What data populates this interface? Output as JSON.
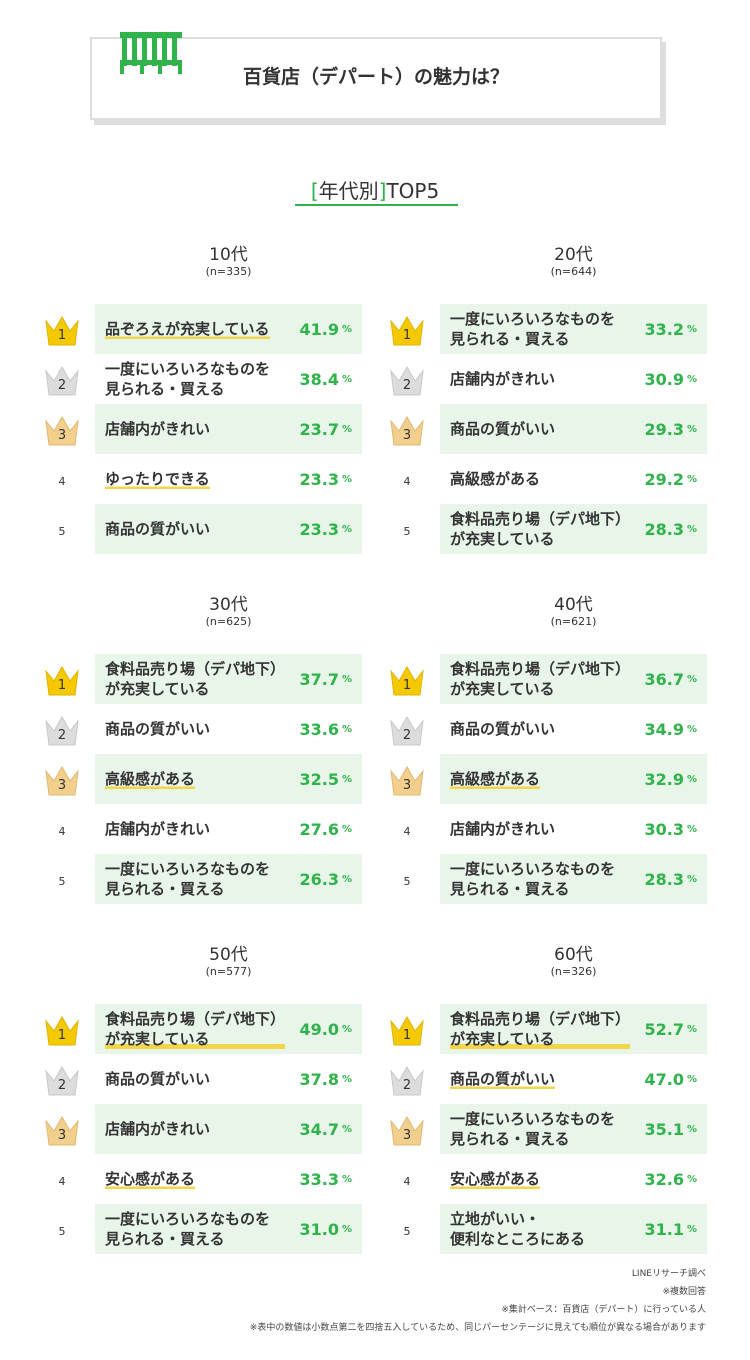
{
  "header": {
    "title": "百貨店（デパート）の魅力は？"
  },
  "section_title": {
    "open": "[",
    "text": "年代別",
    "close": "]",
    "rest": "TOP5"
  },
  "unit": "%",
  "groups": [
    {
      "title": "10代",
      "n": "(n=335)",
      "items": [
        {
          "rank": 1,
          "label": "品ぞろえが充実している",
          "value": "41.9",
          "highlight": true
        },
        {
          "rank": 2,
          "label": "一度にいろいろなものを\n見られる・買える",
          "value": "38.4",
          "highlight": false
        },
        {
          "rank": 3,
          "label": "店舗内がきれい",
          "value": "23.7",
          "highlight": false
        },
        {
          "rank": 4,
          "label": "ゆったりできる",
          "value": "23.3",
          "highlight": true
        },
        {
          "rank": 5,
          "label": "商品の質がいい",
          "value": "23.3",
          "highlight": false
        }
      ]
    },
    {
      "title": "20代",
      "n": "(n=644)",
      "items": [
        {
          "rank": 1,
          "label": "一度にいろいろなものを\n見られる・買える",
          "value": "33.2",
          "highlight": false
        },
        {
          "rank": 2,
          "label": "店舗内がきれい",
          "value": "30.9",
          "highlight": false
        },
        {
          "rank": 3,
          "label": "商品の質がいい",
          "value": "29.3",
          "highlight": false
        },
        {
          "rank": 4,
          "label": "高級感がある",
          "value": "29.2",
          "highlight": false
        },
        {
          "rank": 5,
          "label": "食料品売り場（デパ地下）\nが充実している",
          "value": "28.3",
          "highlight": false
        }
      ]
    },
    {
      "title": "30代",
      "n": "(n=625)",
      "items": [
        {
          "rank": 1,
          "label": "食料品売り場（デパ地下）\nが充実している",
          "value": "37.7",
          "highlight": false
        },
        {
          "rank": 2,
          "label": "商品の質がいい",
          "value": "33.6",
          "highlight": false
        },
        {
          "rank": 3,
          "label": "高級感がある",
          "value": "32.5",
          "highlight": true
        },
        {
          "rank": 4,
          "label": "店舗内がきれい",
          "value": "27.6",
          "highlight": false
        },
        {
          "rank": 5,
          "label": "一度にいろいろなものを\n見られる・買える",
          "value": "26.3",
          "highlight": false
        }
      ]
    },
    {
      "title": "40代",
      "n": "(n=621)",
      "items": [
        {
          "rank": 1,
          "label": "食料品売り場（デパ地下）\nが充実している",
          "value": "36.7",
          "highlight": false
        },
        {
          "rank": 2,
          "label": "商品の質がいい",
          "value": "34.9",
          "highlight": false
        },
        {
          "rank": 3,
          "label": "高級感がある",
          "value": "32.9",
          "highlight": true
        },
        {
          "rank": 4,
          "label": "店舗内がきれい",
          "value": "30.3",
          "highlight": false
        },
        {
          "rank": 5,
          "label": "一度にいろいろなものを\n見られる・買える",
          "value": "28.3",
          "highlight": false
        }
      ]
    },
    {
      "title": "50代",
      "n": "(n=577)",
      "items": [
        {
          "rank": 1,
          "label": "食料品売り場（デパ地下）\nが充実している",
          "value": "49.0",
          "highlight": true
        },
        {
          "rank": 2,
          "label": "商品の質がいい",
          "value": "37.8",
          "highlight": false
        },
        {
          "rank": 3,
          "label": "店舗内がきれい",
          "value": "34.7",
          "highlight": false
        },
        {
          "rank": 4,
          "label": "安心感がある",
          "value": "33.3",
          "highlight": true
        },
        {
          "rank": 5,
          "label": "一度にいろいろなものを\n見られる・買える",
          "value": "31.0",
          "highlight": false
        }
      ]
    },
    {
      "title": "60代",
      "n": "(n=326)",
      "items": [
        {
          "rank": 1,
          "label": "食料品売り場（デパ地下）\nが充実している",
          "value": "52.7",
          "highlight": true
        },
        {
          "rank": 2,
          "label": "商品の質がいい",
          "value": "47.0",
          "highlight": true
        },
        {
          "rank": 3,
          "label": "一度にいろいろなものを\n見られる・買える",
          "value": "35.1",
          "highlight": false
        },
        {
          "rank": 4,
          "label": "安心感がある",
          "value": "32.6",
          "highlight": true
        },
        {
          "rank": 5,
          "label": "立地がいい・\n便利なところにある",
          "value": "31.1",
          "highlight": false
        }
      ]
    }
  ],
  "footer": [
    "LINEリサーチ調べ",
    "※複数回答",
    "※集計ベース：百貨店（デパート）に行っている人",
    "※表中の数値は小数点第二を四捨五入しているため、同じパーセンテージに見えても順位が異なる場合があります"
  ]
}
